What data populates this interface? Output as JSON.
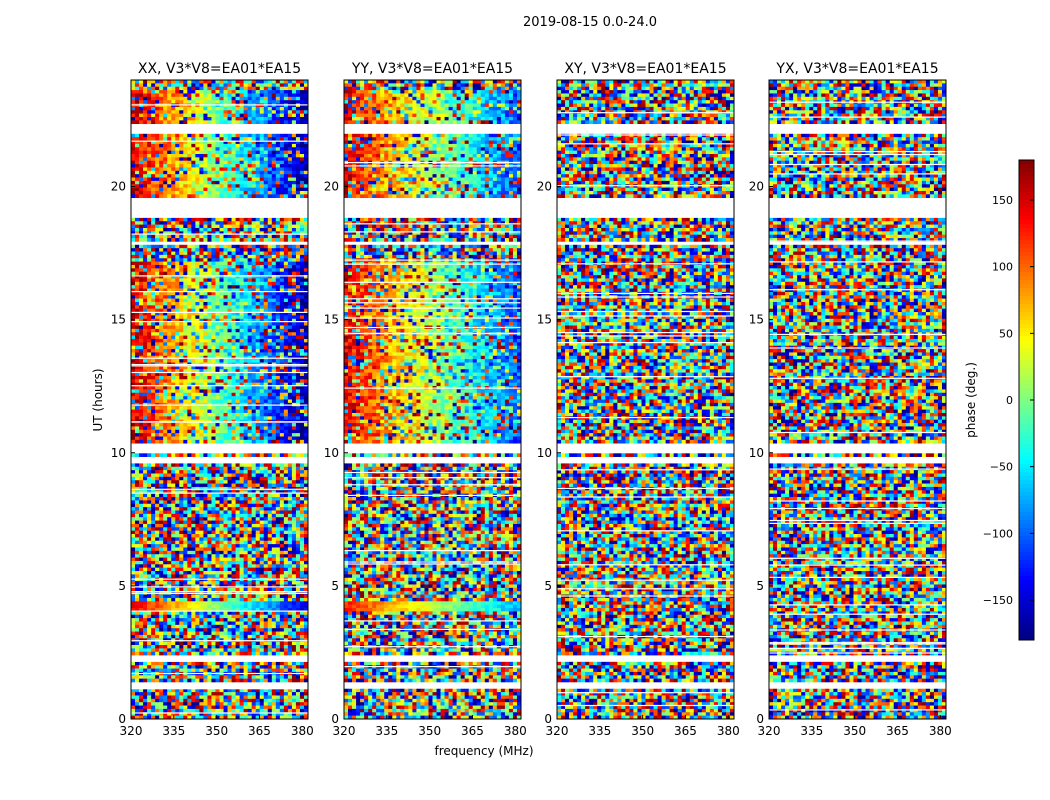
{
  "figure_title": "2019-08-15 0.0-24.0",
  "chart_data": {
    "type": "heatmap",
    "suptitle": "2019-08-15 0.0-24.0",
    "xlabel": "frequency (MHz)",
    "ylabel": "UT (hours)",
    "xlim": [
      320,
      382
    ],
    "ylim": [
      0,
      24
    ],
    "xticks": [
      320,
      335,
      350,
      365,
      380
    ],
    "yticks": [
      0,
      5,
      10,
      15,
      20
    ],
    "panels": [
      {
        "name": "XX",
        "title": "XX, V3*V8=EA01*EA15"
      },
      {
        "name": "YY",
        "title": "YY, V3*V8=EA01*EA15"
      },
      {
        "name": "XY",
        "title": "XY, V3*V8=EA01*EA15"
      },
      {
        "name": "YX",
        "title": "YX, V3*V8=EA01*EA15"
      }
    ],
    "colorbar": {
      "label": "phase (deg.)",
      "range": [
        -180,
        180
      ],
      "ticks": [
        150,
        100,
        50,
        0,
        -50,
        -100,
        -150
      ],
      "tick_labels": [
        "150",
        "100",
        "50",
        "0",
        "−50",
        "−100",
        "−150"
      ],
      "colormap": "jet"
    }
  }
}
